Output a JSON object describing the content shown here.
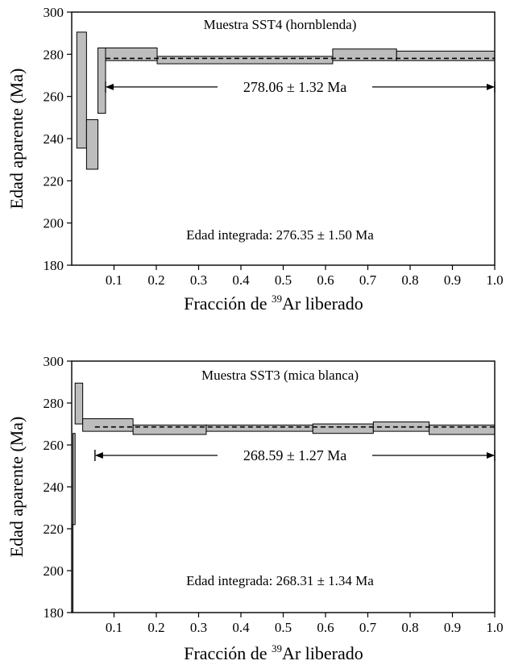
{
  "chart_data": [
    {
      "type": "step-spectrum",
      "title": "Muestra SST4 (hornblenda)",
      "ylabel": "Edad aparente (Ma)",
      "xlabel_prefix": "Fracción de ",
      "xlabel_sup": "39",
      "xlabel_suffix": "Ar liberado",
      "ylim": [
        180,
        300
      ],
      "yticks": [
        180,
        200,
        220,
        240,
        260,
        280,
        300
      ],
      "xlim": [
        0,
        1.0
      ],
      "xticks": [
        "0.1",
        "0.2",
        "0.3",
        "0.4",
        "0.5",
        "0.6",
        "0.7",
        "0.8",
        "0.9",
        "1.0"
      ],
      "grid": false,
      "steps": [
        {
          "x0": 0.012,
          "x1": 0.035,
          "lo": 235.5,
          "hi": 290.5
        },
        {
          "x0": 0.035,
          "x1": 0.062,
          "lo": 225.5,
          "hi": 249.0
        },
        {
          "x0": 0.062,
          "x1": 0.08,
          "lo": 252.0,
          "hi": 283.0
        },
        {
          "x0": 0.08,
          "x1": 0.202,
          "lo": 277.0,
          "hi": 283.0
        },
        {
          "x0": 0.202,
          "x1": 0.617,
          "lo": 275.5,
          "hi": 279.0
        },
        {
          "x0": 0.617,
          "x1": 0.768,
          "lo": 277.0,
          "hi": 282.5
        },
        {
          "x0": 0.768,
          "x1": 1.0,
          "lo": 277.0,
          "hi": 281.5
        }
      ],
      "plateau_age": 278.06,
      "plateau_range": [
        0.08,
        1.0
      ],
      "plateau_arrow_y": 264.5,
      "plateau_label": "278.06 ± 1.32 Ma",
      "integrated_label": "Edad integrada: 276.35 ± 1.50 Ma"
    },
    {
      "type": "step-spectrum",
      "title": "Muestra SST3 (mica blanca)",
      "ylabel": "Edad aparente (Ma)",
      "xlabel_prefix": "Fracción de ",
      "xlabel_sup": "39",
      "xlabel_suffix": "Ar liberado",
      "ylim": [
        180,
        300
      ],
      "yticks": [
        180,
        200,
        220,
        240,
        260,
        280,
        300
      ],
      "xlim": [
        0,
        1.0
      ],
      "xticks": [
        "0.1",
        "0.2",
        "0.3",
        "0.4",
        "0.5",
        "0.6",
        "0.7",
        "0.8",
        "0.9",
        "1.0"
      ],
      "grid": false,
      "steps": [
        {
          "x0": 0.0,
          "x1": 0.003,
          "lo": 180.0,
          "hi": 222.0
        },
        {
          "x0": 0.003,
          "x1": 0.008,
          "lo": 222.0,
          "hi": 265.5
        },
        {
          "x0": 0.008,
          "x1": 0.026,
          "lo": 270.0,
          "hi": 289.5
        },
        {
          "x0": 0.026,
          "x1": 0.145,
          "lo": 266.5,
          "hi": 272.5
        },
        {
          "x0": 0.145,
          "x1": 0.318,
          "lo": 265.0,
          "hi": 269.5
        },
        {
          "x0": 0.318,
          "x1": 0.57,
          "lo": 266.5,
          "hi": 269.5
        },
        {
          "x0": 0.57,
          "x1": 0.713,
          "lo": 265.5,
          "hi": 270.0
        },
        {
          "x0": 0.713,
          "x1": 0.845,
          "lo": 266.5,
          "hi": 271.0
        },
        {
          "x0": 0.845,
          "x1": 1.0,
          "lo": 265.0,
          "hi": 269.5
        }
      ],
      "plateau_age": 268.59,
      "plateau_range": [
        0.055,
        1.0
      ],
      "plateau_arrow_y": 255.0,
      "plateau_label": "268.59 ± 1.27 Ma",
      "integrated_label": "Edad integrada: 268.31 ± 1.34 Ma"
    }
  ]
}
